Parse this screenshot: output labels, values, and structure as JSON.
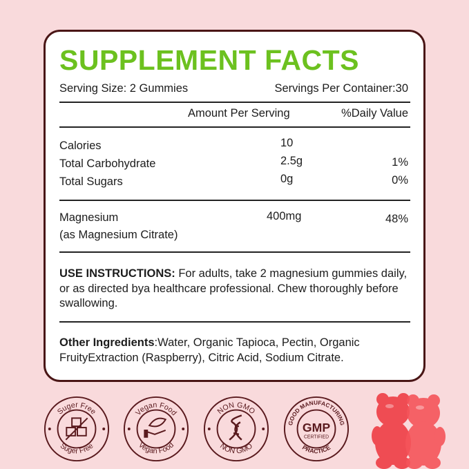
{
  "title": "SUPPLEMENT FACTS",
  "serving_size": "Serving Size: 2 Gummies",
  "servings_per_container": "Servings Per Container:30",
  "headers": {
    "amount": "Amount Per Serving",
    "daily": "%Daily Value"
  },
  "rows": [
    {
      "name": "Calories",
      "amount": "10",
      "daily": ""
    },
    {
      "name": "Total Carbohydrate",
      "amount": "2.5g",
      "daily": "1%"
    },
    {
      "name": "Total Sugars",
      "amount": "0g",
      "daily": "0%"
    }
  ],
  "magnesium": {
    "name": "Magnesium",
    "sub": "(as Magnesium Citrate)",
    "amount": "400mg",
    "daily": "48%"
  },
  "instructions": {
    "label": "USE INSTRUCTIONS:",
    "text": " For adults, take 2 magnesium gummies daily, or as directed bya healthcare professional. Chew thoroughly before swallowing."
  },
  "ingredients": {
    "label": "Other Ingredients",
    "text": ":Water, Organic Tapioca, Pectin, Organic FruityExtraction (Raspberry), Citric Acid, Sodium Citrate."
  },
  "badges": [
    {
      "top": "Suger Free",
      "bottom": "Suger Free",
      "icon": "sugar-cubes-icon"
    },
    {
      "top": "Vegan Food",
      "bottom": "Vegan Food",
      "icon": "leaf-hand-icon"
    },
    {
      "top": "NON GMO",
      "bottom": "NON GMO",
      "icon": "dna-icon"
    },
    {
      "top": "GOOD MANUFACTURING",
      "bottom": "PRACTICE",
      "center": "GMP",
      "center_sub": "CERTIFIED",
      "icon": "gmp-icon"
    }
  ],
  "colors": {
    "background": "#f9dadc",
    "border": "#4a1616",
    "title": "#6cc11f",
    "badge": "#5a1a1e",
    "gummy": "#f0444a"
  }
}
